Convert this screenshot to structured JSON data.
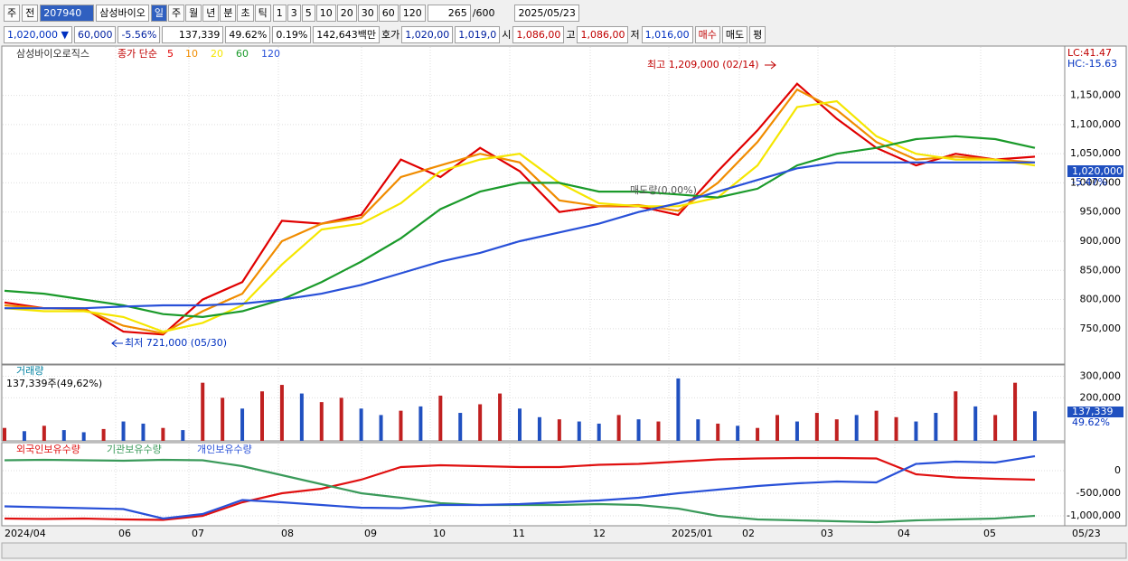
{
  "toolbar": {
    "mode": "주",
    "prev": "전",
    "code": "207940",
    "name": "삼성바이오",
    "periods": [
      "일",
      "주",
      "월",
      "년",
      "분",
      "초",
      "틱"
    ],
    "intervals": [
      "1",
      "3",
      "5",
      "10",
      "20",
      "30",
      "60",
      "120"
    ],
    "count": "265",
    "max": "/600",
    "date": "2025/05/23"
  },
  "quote": {
    "price": "1,020,000",
    "arrow": "▼",
    "change": "60,000",
    "rate": "-5.56%",
    "volume": "137,339",
    "vol_rate": "49.62%",
    "turnover": "0.19%",
    "amount": "142,643백만",
    "bid_label": "호가",
    "ask": "1,020,00",
    "bid": "1,019,0",
    "open_label": "시",
    "open": "1,086,00",
    "high_label": "고",
    "high": "1,086,00",
    "low_label": "저",
    "low": "1,016,00",
    "buy": "매수",
    "sell": "매도",
    "avg": "평"
  },
  "x_labels": [
    "2024/04",
    "06",
    "07",
    "08",
    "09",
    "10",
    "11",
    "12",
    "2025/01",
    "02",
    "03",
    "04",
    "05"
  ],
  "x_end_label": "05/23",
  "chart_data": [
    {
      "type": "line",
      "title": "삼성바이오로직스",
      "legend_prefix": "종가 단순",
      "series": [
        {
          "name": "5",
          "color": "#e00000",
          "values": [
            795000,
            785000,
            785000,
            745000,
            740000,
            800000,
            830000,
            935000,
            930000,
            945000,
            1040000,
            1010000,
            1060000,
            1020000,
            950000,
            960000,
            960000,
            945000,
            1020000,
            1090000,
            1170000,
            1110000,
            1060000,
            1030000,
            1050000,
            1040000,
            1045000
          ]
        },
        {
          "name": "10",
          "color": "#f08c00",
          "values": [
            790000,
            785000,
            783000,
            755000,
            742000,
            780000,
            810000,
            900000,
            930000,
            940000,
            1010000,
            1030000,
            1050000,
            1035000,
            970000,
            960000,
            962000,
            952000,
            1000000,
            1070000,
            1160000,
            1125000,
            1070000,
            1040000,
            1045000,
            1040000,
            1035000
          ]
        },
        {
          "name": "20",
          "color": "#f5e600",
          "values": [
            785000,
            780000,
            780000,
            770000,
            745000,
            760000,
            790000,
            860000,
            920000,
            930000,
            965000,
            1020000,
            1040000,
            1050000,
            1000000,
            965000,
            960000,
            960000,
            975000,
            1030000,
            1130000,
            1140000,
            1080000,
            1050000,
            1040000,
            1040000,
            1030000
          ]
        },
        {
          "name": "60",
          "color": "#1a9a2a",
          "values": [
            815000,
            810000,
            800000,
            790000,
            775000,
            770000,
            780000,
            800000,
            830000,
            865000,
            905000,
            955000,
            985000,
            1000000,
            1000000,
            985000,
            985000,
            980000,
            975000,
            990000,
            1030000,
            1050000,
            1060000,
            1075000,
            1080000,
            1075000,
            1060000
          ]
        },
        {
          "name": "120",
          "color": "#2850d8",
          "values": [
            785000,
            785000,
            785000,
            788000,
            790000,
            790000,
            793000,
            800000,
            810000,
            825000,
            845000,
            865000,
            880000,
            900000,
            915000,
            930000,
            950000,
            965000,
            985000,
            1005000,
            1025000,
            1035000,
            1035000,
            1035000,
            1035000,
            1035000,
            1035000
          ]
        }
      ],
      "ylim": [
        694000,
        1233000
      ],
      "yticks": [
        {
          "value": 750000,
          "label": "750,000"
        },
        {
          "value": 800000,
          "label": "800,000"
        },
        {
          "value": 850000,
          "label": "850,000"
        },
        {
          "value": 900000,
          "label": "900,000"
        },
        {
          "value": 950000,
          "label": "950,000"
        },
        {
          "value": 1000000,
          "label": "1,000,000"
        },
        {
          "value": 1050000,
          "label": "1,050,000"
        },
        {
          "value": 1100000,
          "label": "1,100,000"
        },
        {
          "value": 1150000,
          "label": "1,150,000"
        }
      ],
      "annotations": {
        "high": "최고 1,209,000 (02/14)",
        "low": "최저 721,000 (05/30)",
        "mid": "매도량(0.00%)"
      },
      "right_labels": {
        "lc": "LC:41.47",
        "hc": "HC:-15.63",
        "last": "1,020,000",
        "change": "-5.47%"
      }
    },
    {
      "type": "bar",
      "title": "거래량",
      "subtitle": "137,339주(49,62%)",
      "values": [
        60000,
        45000,
        70000,
        50000,
        40000,
        55000,
        90000,
        80000,
        60000,
        50000,
        270000,
        200000,
        150000,
        230000,
        260000,
        220000,
        180000,
        200000,
        150000,
        120000,
        140000,
        160000,
        210000,
        130000,
        170000,
        220000,
        150000,
        110000,
        100000,
        90000,
        80000,
        120000,
        100000,
        90000,
        290000,
        100000,
        80000,
        70000,
        60000,
        120000,
        90000,
        130000,
        100000,
        120000,
        140000,
        110000,
        90000,
        130000,
        230000,
        160000,
        120000,
        270000,
        137339
      ],
      "colors": [
        "#c02020",
        "#2050c0",
        "#c02020",
        "#2050c0",
        "#2050c0",
        "#c02020",
        "#2050c0",
        "#2050c0",
        "#c02020",
        "#2050c0",
        "#c02020",
        "#c02020",
        "#2050c0",
        "#c02020",
        "#c02020",
        "#2050c0",
        "#c02020",
        "#c02020",
        "#2050c0",
        "#2050c0",
        "#c02020",
        "#2050c0",
        "#c02020",
        "#2050c0",
        "#c02020",
        "#c02020",
        "#2050c0",
        "#2050c0",
        "#c02020",
        "#2050c0",
        "#2050c0",
        "#c02020",
        "#2050c0",
        "#c02020",
        "#2050c0",
        "#2050c0",
        "#c02020",
        "#2050c0",
        "#c02020",
        "#c02020",
        "#2050c0",
        "#c02020",
        "#c02020",
        "#2050c0",
        "#c02020",
        "#c02020",
        "#2050c0",
        "#2050c0",
        "#c02020",
        "#2050c0",
        "#c02020",
        "#c02020",
        "#2050c0"
      ],
      "ylim": [
        0,
        340000
      ],
      "yticks": [
        {
          "value": 200000,
          "label": "200,000"
        },
        {
          "value": 300000,
          "label": "300,000"
        }
      ],
      "right_labels": {
        "last": "137,339",
        "rate": "49.62%"
      }
    },
    {
      "type": "line",
      "series": [
        {
          "name": "외국인보유수량",
          "color": "#e01010",
          "values": [
            -1060000,
            -1070000,
            -1060000,
            -1080000,
            -1090000,
            -1000000,
            -700000,
            -500000,
            -400000,
            -200000,
            80000,
            120000,
            100000,
            80000,
            80000,
            130000,
            150000,
            200000,
            250000,
            270000,
            280000,
            280000,
            270000,
            -80000,
            -150000,
            -180000,
            -200000
          ]
        },
        {
          "name": "기관보유수량",
          "color": "#3a9a5a",
          "values": [
            230000,
            240000,
            230000,
            220000,
            240000,
            230000,
            100000,
            -100000,
            -300000,
            -500000,
            -600000,
            -720000,
            -760000,
            -760000,
            -760000,
            -740000,
            -760000,
            -840000,
            -1000000,
            -1080000,
            -1100000,
            -1120000,
            -1140000,
            -1100000,
            -1080000,
            -1060000,
            -1000000
          ]
        },
        {
          "name": "개인보유수량",
          "color": "#2850d8",
          "values": [
            -790000,
            -810000,
            -830000,
            -850000,
            -1060000,
            -960000,
            -650000,
            -700000,
            -760000,
            -820000,
            -830000,
            -760000,
            -760000,
            -740000,
            -700000,
            -660000,
            -600000,
            -500000,
            -420000,
            -340000,
            -280000,
            -240000,
            -260000,
            150000,
            200000,
            180000,
            320000
          ]
        }
      ],
      "ylim": [
        -1220000,
        580000
      ],
      "yticks": [
        0,
        {
          "value": -500000,
          "label": "-500,000"
        },
        {
          "value": -1000000,
          "label": "-1,000,000"
        }
      ]
    }
  ]
}
